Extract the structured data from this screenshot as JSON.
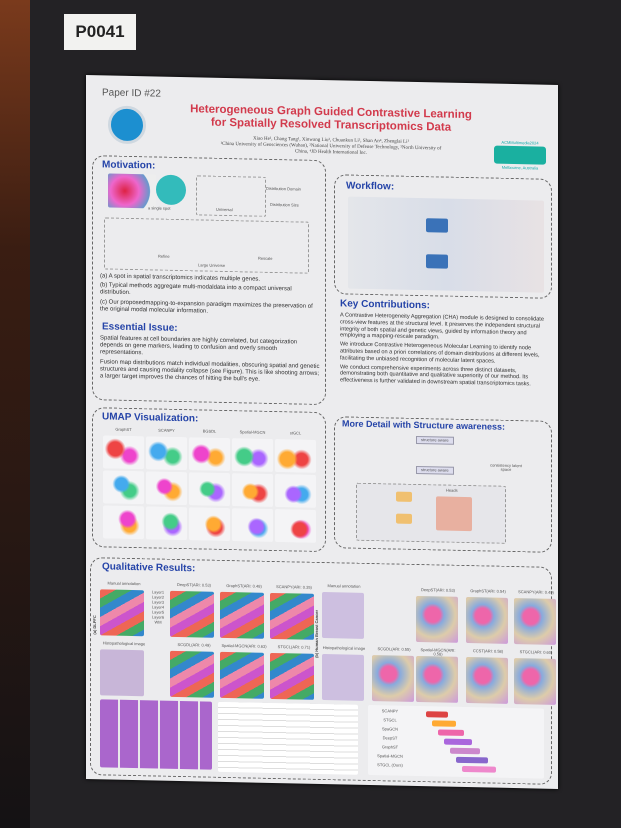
{
  "board_label": "P0041",
  "poster": {
    "paper_id": "Paper ID #22",
    "title": "Heterogeneous Graph Guided Contrastive Learning for Spatially Resolved Transcriptomics Data",
    "authors": "Xiao He¹, Chang Tang¹, Xinwang Liu², Chuankun Li³, Shan An⁴, Zhenglai Li¹",
    "affiliations": "¹China University of Geosciences (Wuhan), ²National University of Defense Technology, ³North University of China, ⁴JD Health International Inc.",
    "conference": "ACMMultimedia2024",
    "conference_location": "Melbourne, Australia",
    "motivation": {
      "heading": "Motivation:",
      "fig_labels": [
        "a single spot",
        "Universal",
        "Distribution Domain",
        "Distribution Size",
        "Refine",
        "Large Universe",
        "Rescale"
      ],
      "bullets": [
        "(a) A spot in spatial transcriptomics indicates multiple genes.",
        "(b) Typical methods aggregate multi-modaldata into a compact universal distribution.",
        "(c) Our proposedmapping-to-expansion paradigm maximizes the preservation of the original modal molecular information."
      ]
    },
    "essential": {
      "heading": "Essential Issue:",
      "bullets": [
        "Spatial features at cell boundaries are highly correlated, but categorization depends on gene markers, leading to confusion and overly smooth representations.",
        "Fusion map distributions match individual modalities, obscuring spatial and genetic structures and causing modality collapse (see Figure). This is like shooting arrows; a larger target improves the chances of hitting the bull's eye."
      ]
    },
    "workflow": {
      "heading": "Workflow:"
    },
    "contributions": {
      "heading": "Key Contributions:",
      "bullets": [
        "A Contrastive Heterogeneity Aggregation (CHA) module is designed to consolidate cross-view features at the structural level. It preserves the independent structural integrity of both spatial and genetic views, guided by information theory and employing a mapping-rescale paradigm.",
        "We introduce Contrastive Heterogeneous Molecular Learning to identify node attributes based on a priori correlations of domain distributions at different levels, facilitating the unbiased recognition of molecular latent spaces.",
        "We conduct comprehensive experiments across three distinct datasets, demonstrating both quantitative and qualitative superiority of our method. Its effectiveness is further validated in downstream spatial transcriptomics tasks."
      ]
    },
    "detail": {
      "heading": "More Detail with Structure awareness:",
      "labels": [
        "structure aware",
        "structure aware",
        "consistency latent space",
        "Heads"
      ]
    },
    "umap": {
      "heading": "UMAP Visualization:",
      "columns": [
        "GraphST",
        "SCANPY",
        "BGSDL",
        "Spatial-MGCN",
        "stGCL"
      ]
    },
    "qualitative": {
      "heading": "Qualitative Results:",
      "left_labels": [
        "Manual annotation",
        "DeepST(ARI: 0.53)",
        "GraphST(ARI: 0.48)",
        "SCANPY(ARI: 0.35)",
        "Histopathological image",
        "SCGDL(ARI: 0.49)",
        "Spatial-MGCN(ARI: 0.63)",
        "STGCL(ARI: 0.71)"
      ],
      "right_labels": [
        "Manual annotation",
        "DeepST(ARI: 0.53)",
        "GraphST(ARI: 0.54)",
        "SCANPY(ARI: 0.49)",
        "Histopathological image",
        "SCGDL(ARI: 0.55)",
        "Spatial-MGCN(ARI: 0.58)",
        "CCST(ARI: 0.58)",
        "STGCL(ARI: 0.60)"
      ],
      "side_left": "(a) DLPFC",
      "side_right": "(b) Human Breast Cancer",
      "legend": [
        "Layer1",
        "Layer2",
        "Layer3",
        "Layer4",
        "Layer5",
        "Layer6",
        "WM"
      ],
      "box_methods": [
        "SCANPY",
        "STGCL",
        "SpaGCN",
        "DeepST",
        "GraphST",
        "Spatial-MGCN",
        "STGCL (Ours)"
      ]
    }
  }
}
